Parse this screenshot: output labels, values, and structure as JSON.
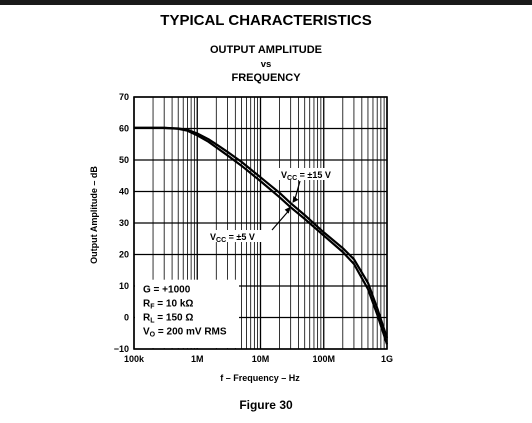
{
  "page": {
    "header": "TYPICAL CHARACTERISTICS",
    "title_line1": "OUTPUT AMPLITUDE",
    "title_line2": "vs",
    "title_line3": "FREQUENCY",
    "figure_caption": "Figure 30"
  },
  "chart_data": {
    "type": "line",
    "title": "OUTPUT AMPLITUDE vs FREQUENCY",
    "xlabel": "f – Frequency – Hz",
    "ylabel": "Output Amplitude – dB",
    "x_scale": "log",
    "xlim": [
      100000,
      1000000000
    ],
    "ylim": [
      -10,
      70
    ],
    "x_ticks": [
      100000,
      1000000,
      10000000,
      100000000,
      1000000000
    ],
    "x_tick_labels": [
      "100k",
      "1M",
      "10M",
      "100M",
      "1G"
    ],
    "y_ticks": [
      -10,
      0,
      10,
      20,
      30,
      40,
      50,
      60,
      70
    ],
    "y_tick_labels": [
      "−10",
      "0",
      "10",
      "20",
      "30",
      "40",
      "50",
      "60",
      "70"
    ],
    "grid": true,
    "series": [
      {
        "name": "VCC = ±15 V",
        "label_parts": [
          "V",
          "CC",
          " = ±15 V"
        ],
        "x": [
          100000,
          300000,
          500000,
          700000,
          1000000,
          1500000,
          2000000,
          3000000,
          5000000,
          7000000,
          10000000,
          20000000,
          30000000,
          50000000,
          100000000,
          200000000,
          300000000,
          500000000,
          700000000,
          1000000000
        ],
        "y": [
          60.2,
          60.2,
          60.0,
          59.6,
          58.4,
          56.6,
          55.0,
          52.6,
          49.4,
          47.0,
          44.5,
          39.6,
          36.3,
          32.5,
          27.0,
          22.0,
          18.5,
          11.0,
          3.0,
          -6.5
        ]
      },
      {
        "name": "VCC = ±5 V",
        "label_parts": [
          "V",
          "CC",
          " = ±5 V"
        ],
        "x": [
          100000,
          300000,
          500000,
          700000,
          1000000,
          1500000,
          2000000,
          3000000,
          5000000,
          7000000,
          10000000,
          20000000,
          30000000,
          50000000,
          100000000,
          200000000,
          300000000,
          500000000,
          700000000,
          1000000000
        ],
        "y": [
          60.2,
          60.2,
          59.9,
          59.3,
          57.8,
          55.8,
          54.0,
          51.5,
          48.2,
          45.8,
          43.3,
          38.2,
          35.0,
          31.3,
          26.0,
          20.8,
          17.0,
          9.0,
          1.0,
          -8.5
        ]
      }
    ],
    "conditions": [
      {
        "parts": [
          "G = +1000"
        ]
      },
      {
        "parts": [
          "R",
          "F",
          " = 10 kΩ"
        ]
      },
      {
        "parts": [
          "R",
          "L",
          " = 150 Ω"
        ]
      },
      {
        "parts": [
          "V",
          "O",
          " = 200 mV RMS"
        ]
      }
    ]
  }
}
